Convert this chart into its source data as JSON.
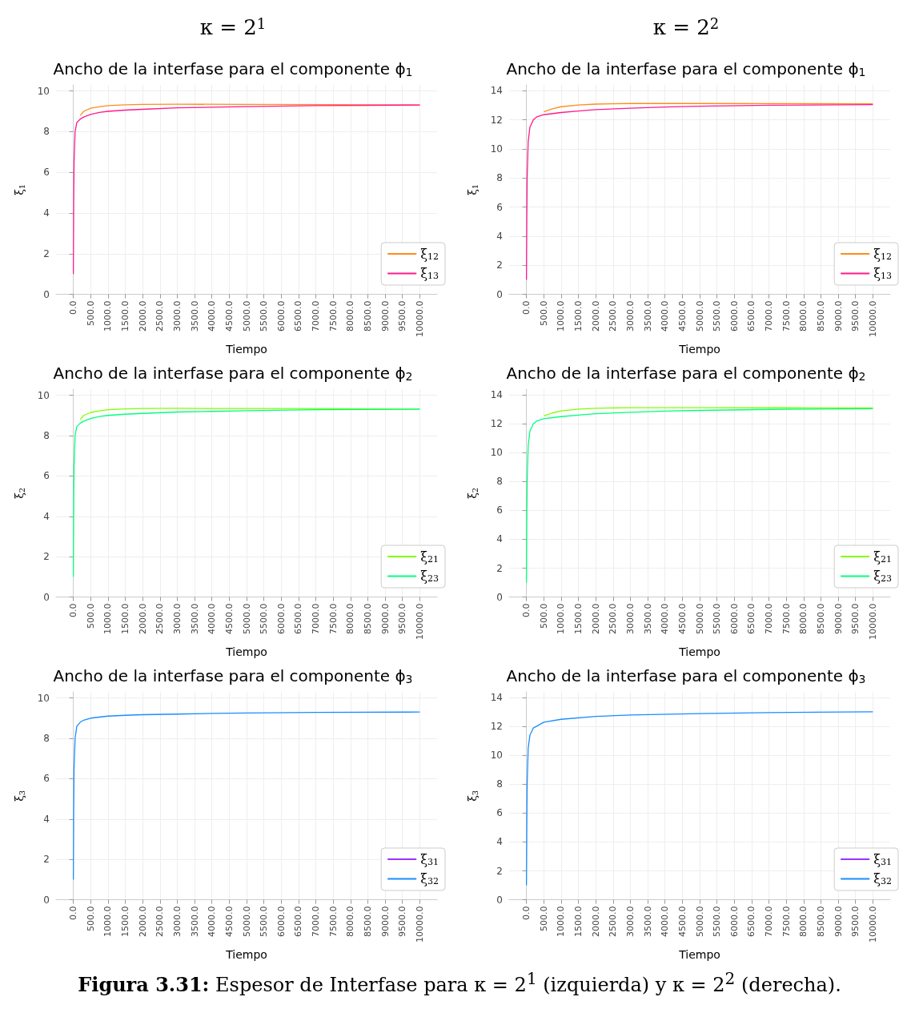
{
  "chart_data": [
    {
      "type": "line",
      "title": "Ancho de la interfase para el componente ϕ$_{1}$",
      "xlabel": "Tiempo",
      "ylabel": "ξ$_{1}$",
      "annotations": [
        "κ = 2$^{1}$"
      ],
      "xlim": [
        -500,
        10500
      ],
      "ylim": [
        0,
        10.3
      ],
      "yticks": [
        0,
        2,
        4,
        6,
        8,
        10
      ],
      "xticks": [
        {
          "value": 0,
          "label": "0.0"
        },
        {
          "value": 500,
          "label": "500.0"
        },
        {
          "value": 1000,
          "label": "1000.0"
        },
        {
          "value": 1500,
          "label": "1500.0"
        },
        {
          "value": 2000,
          "label": "2000.0"
        },
        {
          "value": 2500,
          "label": "2500.0"
        },
        {
          "value": 3000,
          "label": "3000.0"
        },
        {
          "value": 3500,
          "label": "3500.0"
        },
        {
          "value": 4000,
          "label": "4000.0"
        },
        {
          "value": 4500,
          "label": "4500.0"
        },
        {
          "value": 5000,
          "label": "5000.0"
        },
        {
          "value": 5500,
          "label": "5500.0"
        },
        {
          "value": 6000,
          "label": "6000.0"
        },
        {
          "value": 6500,
          "label": "6500.0"
        },
        {
          "value": 7000,
          "label": "7000.0"
        },
        {
          "value": 7500,
          "label": "7500.0"
        },
        {
          "value": 8000,
          "label": "8000.0"
        },
        {
          "value": 8500,
          "label": "8500.0"
        },
        {
          "value": 9000,
          "label": "9000.0"
        },
        {
          "value": 9500,
          "label": "9500.0"
        },
        {
          "value": 10000,
          "label": "10000.0"
        }
      ],
      "grid": true,
      "legend": "bottom right",
      "series": [
        {
          "name": "ξ$_{12}$",
          "color": "#ff8c1a",
          "x": [
            200,
            300,
            500,
            750,
            1000,
            1500,
            2000,
            3000,
            5000,
            7500,
            10000
          ],
          "values": [
            8.8,
            9.0,
            9.15,
            9.22,
            9.28,
            9.32,
            9.34,
            9.35,
            9.34,
            9.33,
            9.31
          ]
        },
        {
          "name": "ξ$_{13}$",
          "color": "#ff1a8c",
          "x": [
            0,
            10,
            20,
            50,
            100,
            200,
            300,
            500,
            750,
            1000,
            1500,
            2000,
            3000,
            4000,
            5000,
            7000,
            10000
          ],
          "values": [
            1,
            4.5,
            6.5,
            8,
            8.45,
            8.62,
            8.72,
            8.85,
            8.95,
            9.0,
            9.06,
            9.1,
            9.17,
            9.2,
            9.23,
            9.28,
            9.31
          ]
        }
      ]
    },
    {
      "type": "line",
      "title": "Ancho de la interfase para el componente ϕ$_{1}$",
      "xlabel": "Tiempo",
      "ylabel": "ξ$_{1}$",
      "annotations": [
        "κ = 2$^{2}$"
      ],
      "xlim": [
        -500,
        10500
      ],
      "ylim": [
        0,
        14.4
      ],
      "yticks": [
        0,
        2,
        4,
        6,
        8,
        10,
        12,
        14
      ],
      "xticks": [
        {
          "value": 0,
          "label": "0.0"
        },
        {
          "value": 500,
          "label": "500.0"
        },
        {
          "value": 1000,
          "label": "1000.0"
        },
        {
          "value": 1500,
          "label": "1500.0"
        },
        {
          "value": 2000,
          "label": "2000.0"
        },
        {
          "value": 2500,
          "label": "2500.0"
        },
        {
          "value": 3000,
          "label": "3000.0"
        },
        {
          "value": 3500,
          "label": "3500.0"
        },
        {
          "value": 4000,
          "label": "4000.0"
        },
        {
          "value": 4500,
          "label": "4500.0"
        },
        {
          "value": 5000,
          "label": "5000.0"
        },
        {
          "value": 5500,
          "label": "5500.0"
        },
        {
          "value": 6000,
          "label": "6000.0"
        },
        {
          "value": 6500,
          "label": "6500.0"
        },
        {
          "value": 7000,
          "label": "7000.0"
        },
        {
          "value": 7500,
          "label": "7500.0"
        },
        {
          "value": 8000,
          "label": "8000.0"
        },
        {
          "value": 8500,
          "label": "8500.0"
        },
        {
          "value": 9000,
          "label": "9000.0"
        },
        {
          "value": 9500,
          "label": "9500.0"
        },
        {
          "value": 10000,
          "label": "10000.0"
        }
      ],
      "grid": true,
      "legend": "bottom right",
      "series": [
        {
          "name": "ξ$_{12}$",
          "color": "#ff8c1a",
          "x": [
            500,
            750,
            1000,
            1500,
            2000,
            3000,
            5000,
            7500,
            10000
          ],
          "values": [
            12.55,
            12.75,
            12.9,
            13.02,
            13.08,
            13.12,
            13.12,
            13.11,
            13.1
          ]
        },
        {
          "name": "ξ$_{13}$",
          "color": "#ff1a8c",
          "x": [
            0,
            10,
            20,
            50,
            100,
            200,
            300,
            500,
            1000,
            1500,
            2000,
            3000,
            4000,
            5000,
            7000,
            10000
          ],
          "values": [
            1,
            5,
            8,
            10.5,
            11.5,
            12.0,
            12.2,
            12.35,
            12.5,
            12.6,
            12.7,
            12.8,
            12.88,
            12.93,
            13.0,
            13.05
          ]
        }
      ]
    },
    {
      "type": "line",
      "title": "Ancho de la interfase para el componente ϕ$_{2}$",
      "xlabel": "Tiempo",
      "ylabel": "ξ$_{2}$",
      "xlim": [
        -500,
        10500
      ],
      "ylim": [
        0,
        10.3
      ],
      "yticks": [
        0,
        2,
        4,
        6,
        8,
        10
      ],
      "xticks": [
        {
          "value": 0,
          "label": "0.0"
        },
        {
          "value": 500,
          "label": "500.0"
        },
        {
          "value": 1000,
          "label": "1000.0"
        },
        {
          "value": 1500,
          "label": "1500.0"
        },
        {
          "value": 2000,
          "label": "2000.0"
        },
        {
          "value": 2500,
          "label": "2500.0"
        },
        {
          "value": 3000,
          "label": "3000.0"
        },
        {
          "value": 3500,
          "label": "3500.0"
        },
        {
          "value": 4000,
          "label": "4000.0"
        },
        {
          "value": 4500,
          "label": "4500.0"
        },
        {
          "value": 5000,
          "label": "5000.0"
        },
        {
          "value": 5500,
          "label": "5500.0"
        },
        {
          "value": 6000,
          "label": "6000.0"
        },
        {
          "value": 6500,
          "label": "6500.0"
        },
        {
          "value": 7000,
          "label": "7000.0"
        },
        {
          "value": 7500,
          "label": "7500.0"
        },
        {
          "value": 8000,
          "label": "8000.0"
        },
        {
          "value": 8500,
          "label": "8500.0"
        },
        {
          "value": 9000,
          "label": "9000.0"
        },
        {
          "value": 9500,
          "label": "9500.0"
        },
        {
          "value": 10000,
          "label": "10000.0"
        }
      ],
      "grid": true,
      "legend": "bottom right",
      "series": [
        {
          "name": "ξ$_{21}$",
          "color": "#80ff00",
          "x": [
            200,
            300,
            500,
            750,
            1000,
            1500,
            2000,
            3000,
            5000,
            7500,
            10000
          ],
          "values": [
            8.8,
            9.0,
            9.15,
            9.22,
            9.28,
            9.32,
            9.34,
            9.35,
            9.34,
            9.33,
            9.31
          ]
        },
        {
          "name": "ξ$_{23}$",
          "color": "#00ff80",
          "x": [
            0,
            10,
            20,
            50,
            100,
            200,
            300,
            500,
            750,
            1000,
            1500,
            2000,
            3000,
            4000,
            5000,
            7000,
            10000
          ],
          "values": [
            1,
            4.5,
            6.5,
            8,
            8.45,
            8.62,
            8.72,
            8.85,
            8.95,
            9.0,
            9.06,
            9.1,
            9.17,
            9.2,
            9.23,
            9.28,
            9.31
          ]
        }
      ]
    },
    {
      "type": "line",
      "title": "Ancho de la interfase para el componente ϕ$_{2}$",
      "xlabel": "Tiempo",
      "ylabel": "ξ$_{2}$",
      "xlim": [
        -500,
        10500
      ],
      "ylim": [
        0,
        14.4
      ],
      "yticks": [
        0,
        2,
        4,
        6,
        8,
        10,
        12,
        14
      ],
      "xticks": [
        {
          "value": 0,
          "label": "0.0"
        },
        {
          "value": 500,
          "label": "500.0"
        },
        {
          "value": 1000,
          "label": "1000.0"
        },
        {
          "value": 1500,
          "label": "1500.0"
        },
        {
          "value": 2000,
          "label": "2000.0"
        },
        {
          "value": 2500,
          "label": "2500.0"
        },
        {
          "value": 3000,
          "label": "3000.0"
        },
        {
          "value": 3500,
          "label": "3500.0"
        },
        {
          "value": 4000,
          "label": "4000.0"
        },
        {
          "value": 4500,
          "label": "4500.0"
        },
        {
          "value": 5000,
          "label": "5000.0"
        },
        {
          "value": 5500,
          "label": "5500.0"
        },
        {
          "value": 6000,
          "label": "6000.0"
        },
        {
          "value": 6500,
          "label": "6500.0"
        },
        {
          "value": 7000,
          "label": "7000.0"
        },
        {
          "value": 7500,
          "label": "7500.0"
        },
        {
          "value": 8000,
          "label": "8000.0"
        },
        {
          "value": 8500,
          "label": "8500.0"
        },
        {
          "value": 9000,
          "label": "9000.0"
        },
        {
          "value": 9500,
          "label": "9500.0"
        },
        {
          "value": 10000,
          "label": "10000.0"
        }
      ],
      "grid": true,
      "legend": "bottom right",
      "series": [
        {
          "name": "ξ$_{21}$",
          "color": "#80ff00",
          "x": [
            500,
            750,
            1000,
            1500,
            2000,
            3000,
            5000,
            7500,
            10000
          ],
          "values": [
            12.55,
            12.75,
            12.9,
            13.02,
            13.08,
            13.12,
            13.12,
            13.11,
            13.1
          ]
        },
        {
          "name": "ξ$_{23}$",
          "color": "#00ff80",
          "x": [
            0,
            10,
            20,
            50,
            100,
            200,
            300,
            500,
            1000,
            1500,
            2000,
            3000,
            4000,
            5000,
            7000,
            10000
          ],
          "values": [
            1,
            5,
            8,
            10.5,
            11.5,
            12.0,
            12.2,
            12.35,
            12.5,
            12.6,
            12.7,
            12.8,
            12.88,
            12.93,
            13.0,
            13.05
          ]
        }
      ]
    },
    {
      "type": "line",
      "title": "Ancho de la interfase para el componente ϕ$_{3}$",
      "xlabel": "Tiempo",
      "ylabel": "ξ$_{3}$",
      "xlim": [
        -500,
        10500
      ],
      "ylim": [
        0,
        10.3
      ],
      "yticks": [
        0,
        2,
        4,
        6,
        8,
        10
      ],
      "xticks": [
        {
          "value": 0,
          "label": "0.0"
        },
        {
          "value": 500,
          "label": "500.0"
        },
        {
          "value": 1000,
          "label": "1000.0"
        },
        {
          "value": 1500,
          "label": "1500.0"
        },
        {
          "value": 2000,
          "label": "2000.0"
        },
        {
          "value": 2500,
          "label": "2500.0"
        },
        {
          "value": 3000,
          "label": "3000.0"
        },
        {
          "value": 3500,
          "label": "3500.0"
        },
        {
          "value": 4000,
          "label": "4000.0"
        },
        {
          "value": 4500,
          "label": "4500.0"
        },
        {
          "value": 5000,
          "label": "5000.0"
        },
        {
          "value": 5500,
          "label": "5500.0"
        },
        {
          "value": 6000,
          "label": "6000.0"
        },
        {
          "value": 6500,
          "label": "6500.0"
        },
        {
          "value": 7000,
          "label": "7000.0"
        },
        {
          "value": 7500,
          "label": "7500.0"
        },
        {
          "value": 8000,
          "label": "8000.0"
        },
        {
          "value": 8500,
          "label": "8500.0"
        },
        {
          "value": 9000,
          "label": "9000.0"
        },
        {
          "value": 9500,
          "label": "9500.0"
        },
        {
          "value": 10000,
          "label": "10000.0"
        }
      ],
      "grid": true,
      "legend": "bottom right",
      "series": [
        {
          "name": "ξ$_{31}$",
          "color": "#9933ff"
        },
        {
          "name": "ξ$_{32}$",
          "color": "#1a8cff",
          "x": [
            0,
            10,
            20,
            50,
            100,
            200,
            300,
            500,
            1000,
            1500,
            2000,
            3000,
            4000,
            5000,
            7000,
            10000
          ],
          "values": [
            1,
            4.5,
            6.5,
            8,
            8.6,
            8.8,
            8.9,
            9.0,
            9.1,
            9.14,
            9.17,
            9.2,
            9.23,
            9.25,
            9.28,
            9.3
          ]
        }
      ]
    },
    {
      "type": "line",
      "title": "Ancho de la interfase para el componente ϕ$_{3}$",
      "xlabel": "Tiempo",
      "ylabel": "ξ$_{3}$",
      "annotations": [
        "Figura 3.31: Espesor de Interfase para κ = 2$^{1}$ (izquierda) y κ = 2$^{2}$ (derecha)."
      ],
      "xlim": [
        -500,
        10500
      ],
      "ylim": [
        0,
        14.4
      ],
      "yticks": [
        0,
        2,
        4,
        6,
        8,
        10,
        12,
        14
      ],
      "xticks": [
        {
          "value": 0,
          "label": "0.0"
        },
        {
          "value": 500,
          "label": "500.0"
        },
        {
          "value": 1000,
          "label": "1000.0"
        },
        {
          "value": 1500,
          "label": "1500.0"
        },
        {
          "value": 2000,
          "label": "2000.0"
        },
        {
          "value": 2500,
          "label": "2500.0"
        },
        {
          "value": 3000,
          "label": "3000.0"
        },
        {
          "value": 3500,
          "label": "3500.0"
        },
        {
          "value": 4000,
          "label": "4000.0"
        },
        {
          "value": 4500,
          "label": "4500.0"
        },
        {
          "value": 5000,
          "label": "5000.0"
        },
        {
          "value": 5500,
          "label": "5500.0"
        },
        {
          "value": 6000,
          "label": "6000.0"
        },
        {
          "value": 6500,
          "label": "6500.0"
        },
        {
          "value": 7000,
          "label": "7000.0"
        },
        {
          "value": 7500,
          "label": "7500.0"
        },
        {
          "value": 8000,
          "label": "8000.0"
        },
        {
          "value": 8500,
          "label": "8500.0"
        },
        {
          "value": 9000,
          "label": "9000.0"
        },
        {
          "value": 9500,
          "label": "9500.0"
        },
        {
          "value": 10000,
          "label": "10000.0"
        }
      ],
      "grid": true,
      "legend": "bottom right",
      "series": [
        {
          "name": "ξ$_{31}$",
          "color": "#9933ff"
        },
        {
          "name": "ξ$_{32}$",
          "color": "#1a8cff",
          "x": [
            0,
            10,
            20,
            50,
            100,
            200,
            500,
            1000,
            2000,
            3000,
            5000,
            7000,
            10000
          ],
          "values": [
            1,
            5,
            8,
            10.5,
            11.4,
            11.9,
            12.3,
            12.5,
            12.7,
            12.8,
            12.9,
            12.97,
            13.02
          ]
        }
      ]
    }
  ]
}
